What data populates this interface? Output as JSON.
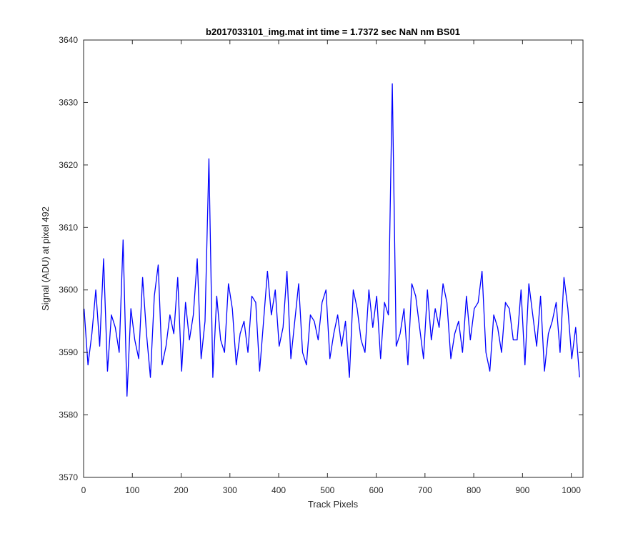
{
  "chart_data": {
    "type": "line",
    "title": "b2017033101_img.mat int time = 1.7372 sec  NaN nm BS01",
    "xlabel": "Track Pixels",
    "ylabel": "Signal (ADU) at pixel 492",
    "xlim": [
      0,
      1024
    ],
    "ylim": [
      3570,
      3640
    ],
    "xticks": [
      0,
      100,
      200,
      300,
      400,
      500,
      600,
      700,
      800,
      900,
      1000
    ],
    "yticks": [
      3570,
      3580,
      3590,
      3600,
      3610,
      3620,
      3630,
      3640
    ],
    "grid": false,
    "legend": "none",
    "series": [
      {
        "color": "#0000ff",
        "x_start": 1,
        "x_step": 8,
        "values": [
          3597,
          3588,
          3593,
          3600,
          3591,
          3605,
          3587,
          3596,
          3594,
          3590,
          3608,
          3583,
          3597,
          3592,
          3589,
          3602,
          3593,
          3586,
          3599,
          3604,
          3588,
          3591,
          3596,
          3593,
          3602,
          3587,
          3598,
          3592,
          3596,
          3605,
          3589,
          3595,
          3621,
          3586,
          3599,
          3592,
          3590,
          3601,
          3597,
          3588,
          3593,
          3595,
          3590,
          3599,
          3598,
          3587,
          3595,
          3603,
          3596,
          3600,
          3591,
          3594,
          3603,
          3589,
          3595,
          3601,
          3590,
          3588,
          3596,
          3595,
          3592,
          3598,
          3600,
          3589,
          3593,
          3596,
          3591,
          3595,
          3586,
          3600,
          3597,
          3592,
          3590,
          3600,
          3594,
          3599,
          3589,
          3598,
          3596,
          3633,
          3591,
          3593,
          3597,
          3588,
          3601,
          3599,
          3594,
          3589,
          3600,
          3592,
          3597,
          3594,
          3601,
          3598,
          3589,
          3593,
          3595,
          3590,
          3599,
          3592,
          3597,
          3598,
          3603,
          3590,
          3587,
          3596,
          3594,
          3590,
          3598,
          3597,
          3592,
          3592,
          3600,
          3588,
          3601,
          3596,
          3591,
          3599,
          3587,
          3593,
          3595,
          3598,
          3590,
          3602,
          3597,
          3589,
          3594,
          3586
        ]
      }
    ]
  }
}
